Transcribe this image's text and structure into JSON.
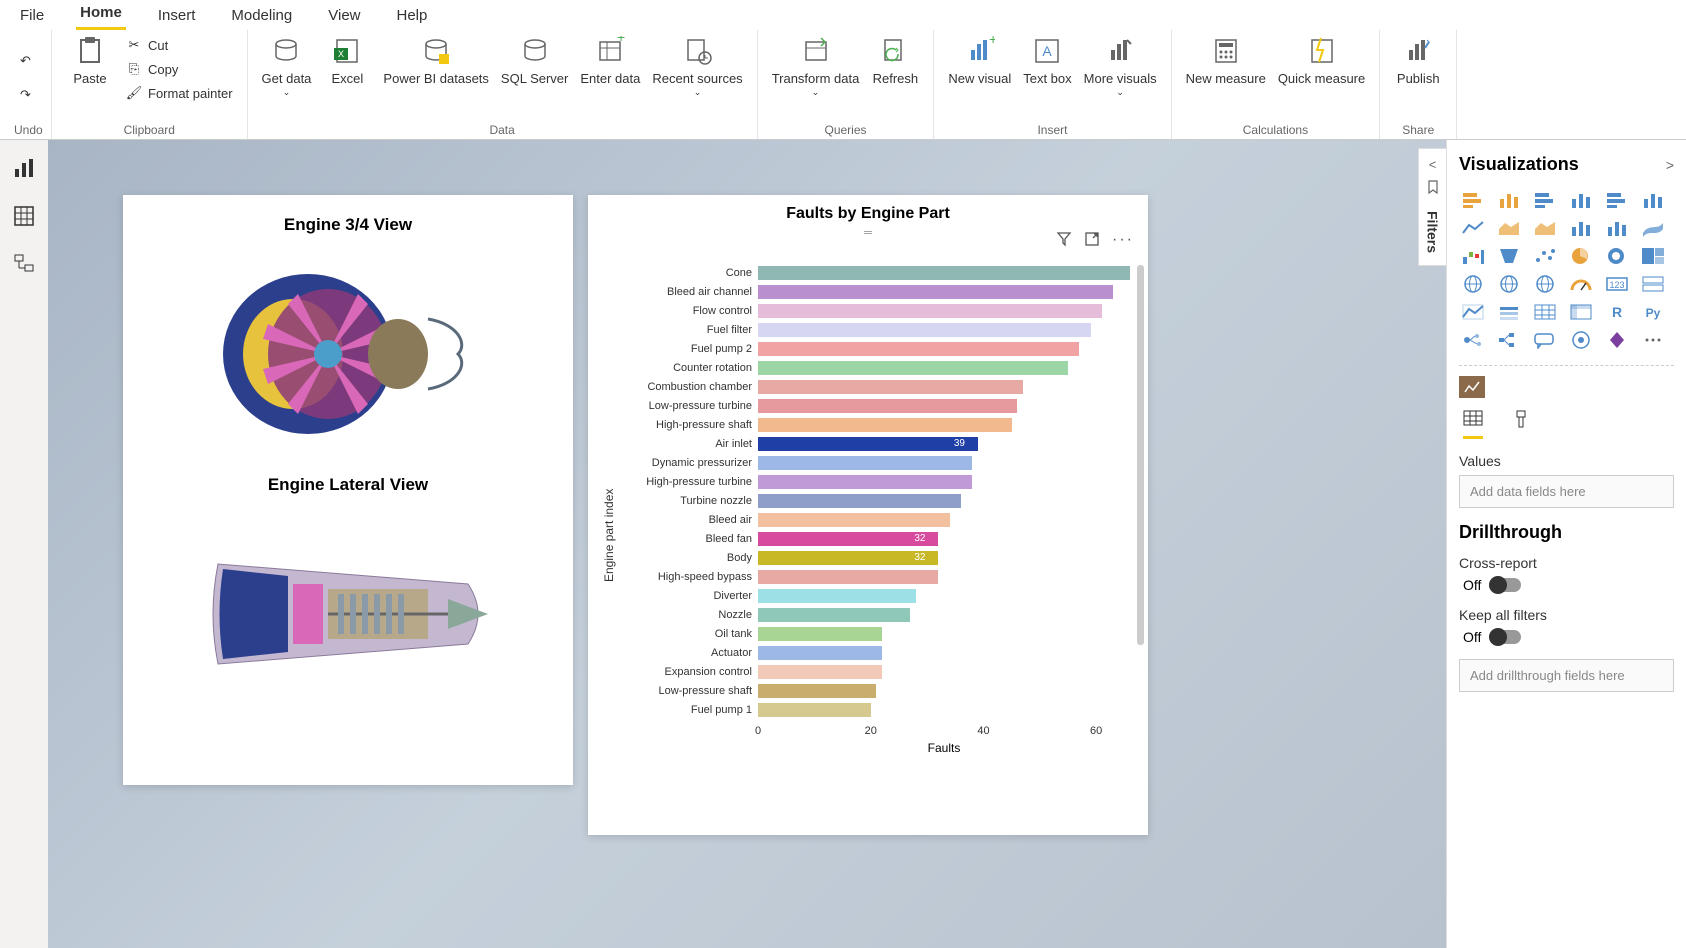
{
  "tabs": [
    "File",
    "Home",
    "Insert",
    "Modeling",
    "View",
    "Help"
  ],
  "active_tab_index": 1,
  "ribbon": {
    "undo_group": {
      "label": "Undo"
    },
    "clipboard_group": {
      "label": "Clipboard",
      "paste": "Paste",
      "cut": "Cut",
      "copy": "Copy",
      "format_painter": "Format painter"
    },
    "data_group": {
      "label": "Data",
      "get_data": "Get data",
      "excel": "Excel",
      "pbi_datasets": "Power BI datasets",
      "sql_server": "SQL Server",
      "enter_data": "Enter data",
      "recent_sources": "Recent sources"
    },
    "queries_group": {
      "label": "Queries",
      "transform_data": "Transform data",
      "refresh": "Refresh"
    },
    "insert_group": {
      "label": "Insert",
      "new_visual": "New visual",
      "text_box": "Text box",
      "more_visuals": "More visuals"
    },
    "calc_group": {
      "label": "Calculations",
      "new_measure": "New measure",
      "quick_measure": "Quick measure"
    },
    "share_group": {
      "label": "Share",
      "publish": "Publish"
    }
  },
  "left_card": {
    "title1": "Engine 3/4 View",
    "title2": "Engine Lateral View"
  },
  "chart": {
    "title": "Faults by Engine Part",
    "ylabel": "Engine part index",
    "xlabel": "Faults",
    "xticks": [
      0,
      20,
      40,
      60
    ],
    "max_value": 66,
    "bars": [
      {
        "label": "Cone",
        "value": 66,
        "color": "#8fb8b5",
        "show_value": false
      },
      {
        "label": "Bleed air channel",
        "value": 63,
        "color": "#b98fcf",
        "show_value": false
      },
      {
        "label": "Flow control",
        "value": 61,
        "color": "#e5bdda",
        "show_value": false
      },
      {
        "label": "Fuel filter",
        "value": 59,
        "color": "#d6d5f2",
        "show_value": false
      },
      {
        "label": "Fuel pump 2",
        "value": 57,
        "color": "#f0a3a2",
        "show_value": false
      },
      {
        "label": "Counter rotation",
        "value": 55,
        "color": "#9dd6a6",
        "show_value": false
      },
      {
        "label": "Combustion chamber",
        "value": 47,
        "color": "#e6a9a3",
        "show_value": false
      },
      {
        "label": "Low-pressure turbine",
        "value": 46,
        "color": "#e79a9d",
        "show_value": false
      },
      {
        "label": "High-pressure shaft",
        "value": 45,
        "color": "#f2b98f",
        "show_value": false
      },
      {
        "label": "Air inlet",
        "value": 39,
        "color": "#1f3fa6",
        "show_value": true
      },
      {
        "label": "Dynamic pressurizer",
        "value": 38,
        "color": "#9db7e6",
        "show_value": false
      },
      {
        "label": "High-pressure turbine",
        "value": 38,
        "color": "#c09ad6",
        "show_value": false
      },
      {
        "label": "Turbine nozzle",
        "value": 36,
        "color": "#8f9ec9",
        "show_value": false
      },
      {
        "label": "Bleed air",
        "value": 34,
        "color": "#f2c09e",
        "show_value": false
      },
      {
        "label": "Bleed fan",
        "value": 32,
        "color": "#d84a9e",
        "show_value": true
      },
      {
        "label": "Body",
        "value": 32,
        "color": "#c9b826",
        "show_value": true
      },
      {
        "label": "High-speed bypass",
        "value": 32,
        "color": "#e6a9a3",
        "show_value": false
      },
      {
        "label": "Diverter",
        "value": 28,
        "color": "#9de0e6",
        "show_value": false
      },
      {
        "label": "Nozzle",
        "value": 27,
        "color": "#8fc7b8",
        "show_value": false
      },
      {
        "label": "Oil tank",
        "value": 22,
        "color": "#a8d494",
        "show_value": false
      },
      {
        "label": "Actuator",
        "value": 22,
        "color": "#9db7e6",
        "show_value": false
      },
      {
        "label": "Expansion control",
        "value": 22,
        "color": "#f2c9b8",
        "show_value": false
      },
      {
        "label": "Low-pressure shaft",
        "value": 21,
        "color": "#c9ad6e",
        "show_value": false
      },
      {
        "label": "Fuel pump 1",
        "value": 20,
        "color": "#d6c98f",
        "show_value": false
      }
    ]
  },
  "filters_label": "Filters",
  "viz_pane": {
    "title": "Visualizations",
    "values_label": "Values",
    "values_placeholder": "Add data fields here",
    "drillthrough_label": "Drillthrough",
    "cross_report_label": "Cross-report",
    "off_label": "Off",
    "keep_filters_label": "Keep all filters",
    "drill_placeholder": "Add drillthrough fields here",
    "viz_icons": [
      {
        "name": "stacked-bar",
        "color": "#e8a33d"
      },
      {
        "name": "stacked-column",
        "color": "#e8a33d"
      },
      {
        "name": "clustered-bar",
        "color": "#4f8bc9"
      },
      {
        "name": "clustered-column",
        "color": "#4f8bc9"
      },
      {
        "name": "100-stacked-bar",
        "color": "#4f8bc9"
      },
      {
        "name": "100-stacked-column",
        "color": "#4f8bc9"
      },
      {
        "name": "line",
        "color": "#4f8bc9"
      },
      {
        "name": "area",
        "color": "#e8a33d"
      },
      {
        "name": "stacked-area",
        "color": "#e8a33d"
      },
      {
        "name": "line-stacked-column",
        "color": "#4f8bc9"
      },
      {
        "name": "line-clustered-column",
        "color": "#4f8bc9"
      },
      {
        "name": "ribbon",
        "color": "#4f8bc9"
      },
      {
        "name": "waterfall",
        "color": "#4f8bc9"
      },
      {
        "name": "funnel",
        "color": "#4f8bc9"
      },
      {
        "name": "scatter",
        "color": "#4f8bc9"
      },
      {
        "name": "pie",
        "color": "#e8a33d"
      },
      {
        "name": "donut",
        "color": "#4f8bc9"
      },
      {
        "name": "treemap",
        "color": "#4f8bc9"
      },
      {
        "name": "map",
        "color": "#4f8bc9"
      },
      {
        "name": "filled-map",
        "color": "#4f8bc9"
      },
      {
        "name": "shape-map",
        "color": "#4f8bc9"
      },
      {
        "name": "gauge",
        "color": "#e8a33d"
      },
      {
        "name": "card",
        "color": "#4f8bc9"
      },
      {
        "name": "multi-row-card",
        "color": "#4f8bc9"
      },
      {
        "name": "kpi",
        "color": "#4f8bc9"
      },
      {
        "name": "slicer",
        "color": "#4f8bc9"
      },
      {
        "name": "table",
        "color": "#4f8bc9"
      },
      {
        "name": "matrix",
        "color": "#4f8bc9"
      },
      {
        "name": "r-visual",
        "color": "#4f8bc9"
      },
      {
        "name": "py-visual",
        "color": "#4f8bc9"
      },
      {
        "name": "key-influencers",
        "color": "#4f8bc9"
      },
      {
        "name": "decomposition-tree",
        "color": "#4f8bc9"
      },
      {
        "name": "qa",
        "color": "#4f8bc9"
      },
      {
        "name": "arcgis",
        "color": "#4f8bc9"
      },
      {
        "name": "powerapps",
        "color": "#7b3fa0"
      },
      {
        "name": "more",
        "color": "#666666"
      }
    ]
  }
}
